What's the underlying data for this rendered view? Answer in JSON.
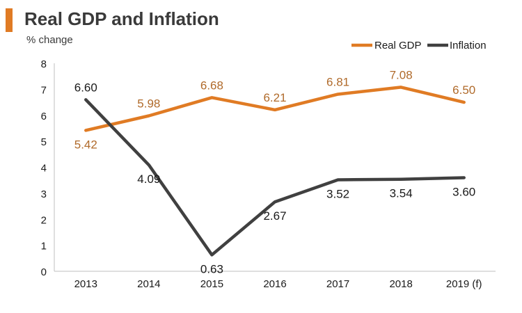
{
  "colors": {
    "accent": "#e07b24",
    "gdp": "#e07b24",
    "inflation": "#404040",
    "gdp_label": "#b06a2a",
    "axis": "#bfbfbf",
    "text": "#1a1a1a"
  },
  "chart_data": {
    "type": "line",
    "title": "Real GDP and Inflation",
    "subtitle": "% change",
    "xlabel": "",
    "ylabel": "% change",
    "categories": [
      "2013",
      "2014",
      "2015",
      "2016",
      "2017",
      "2018",
      "2019 (f)"
    ],
    "ylim": [
      0,
      8
    ],
    "yticks": [
      "0",
      "1",
      "2",
      "3",
      "4",
      "5",
      "6",
      "7",
      "8"
    ],
    "grid": false,
    "legend_position": "top-right",
    "series": [
      {
        "name": "Real GDP",
        "color": "#e07b24",
        "values": [
          5.42,
          5.98,
          6.68,
          6.21,
          6.81,
          7.08,
          6.5
        ],
        "labels": [
          "5.42",
          "5.98",
          "6.68",
          "6.21",
          "6.81",
          "7.08",
          "6.50"
        ]
      },
      {
        "name": "Inflation",
        "color": "#404040",
        "values": [
          6.6,
          4.09,
          0.63,
          2.67,
          3.52,
          3.54,
          3.6
        ],
        "labels": [
          "6.60",
          "4.09",
          "0.63",
          "2.67",
          "3.52",
          "3.54",
          "3.60"
        ]
      }
    ]
  }
}
